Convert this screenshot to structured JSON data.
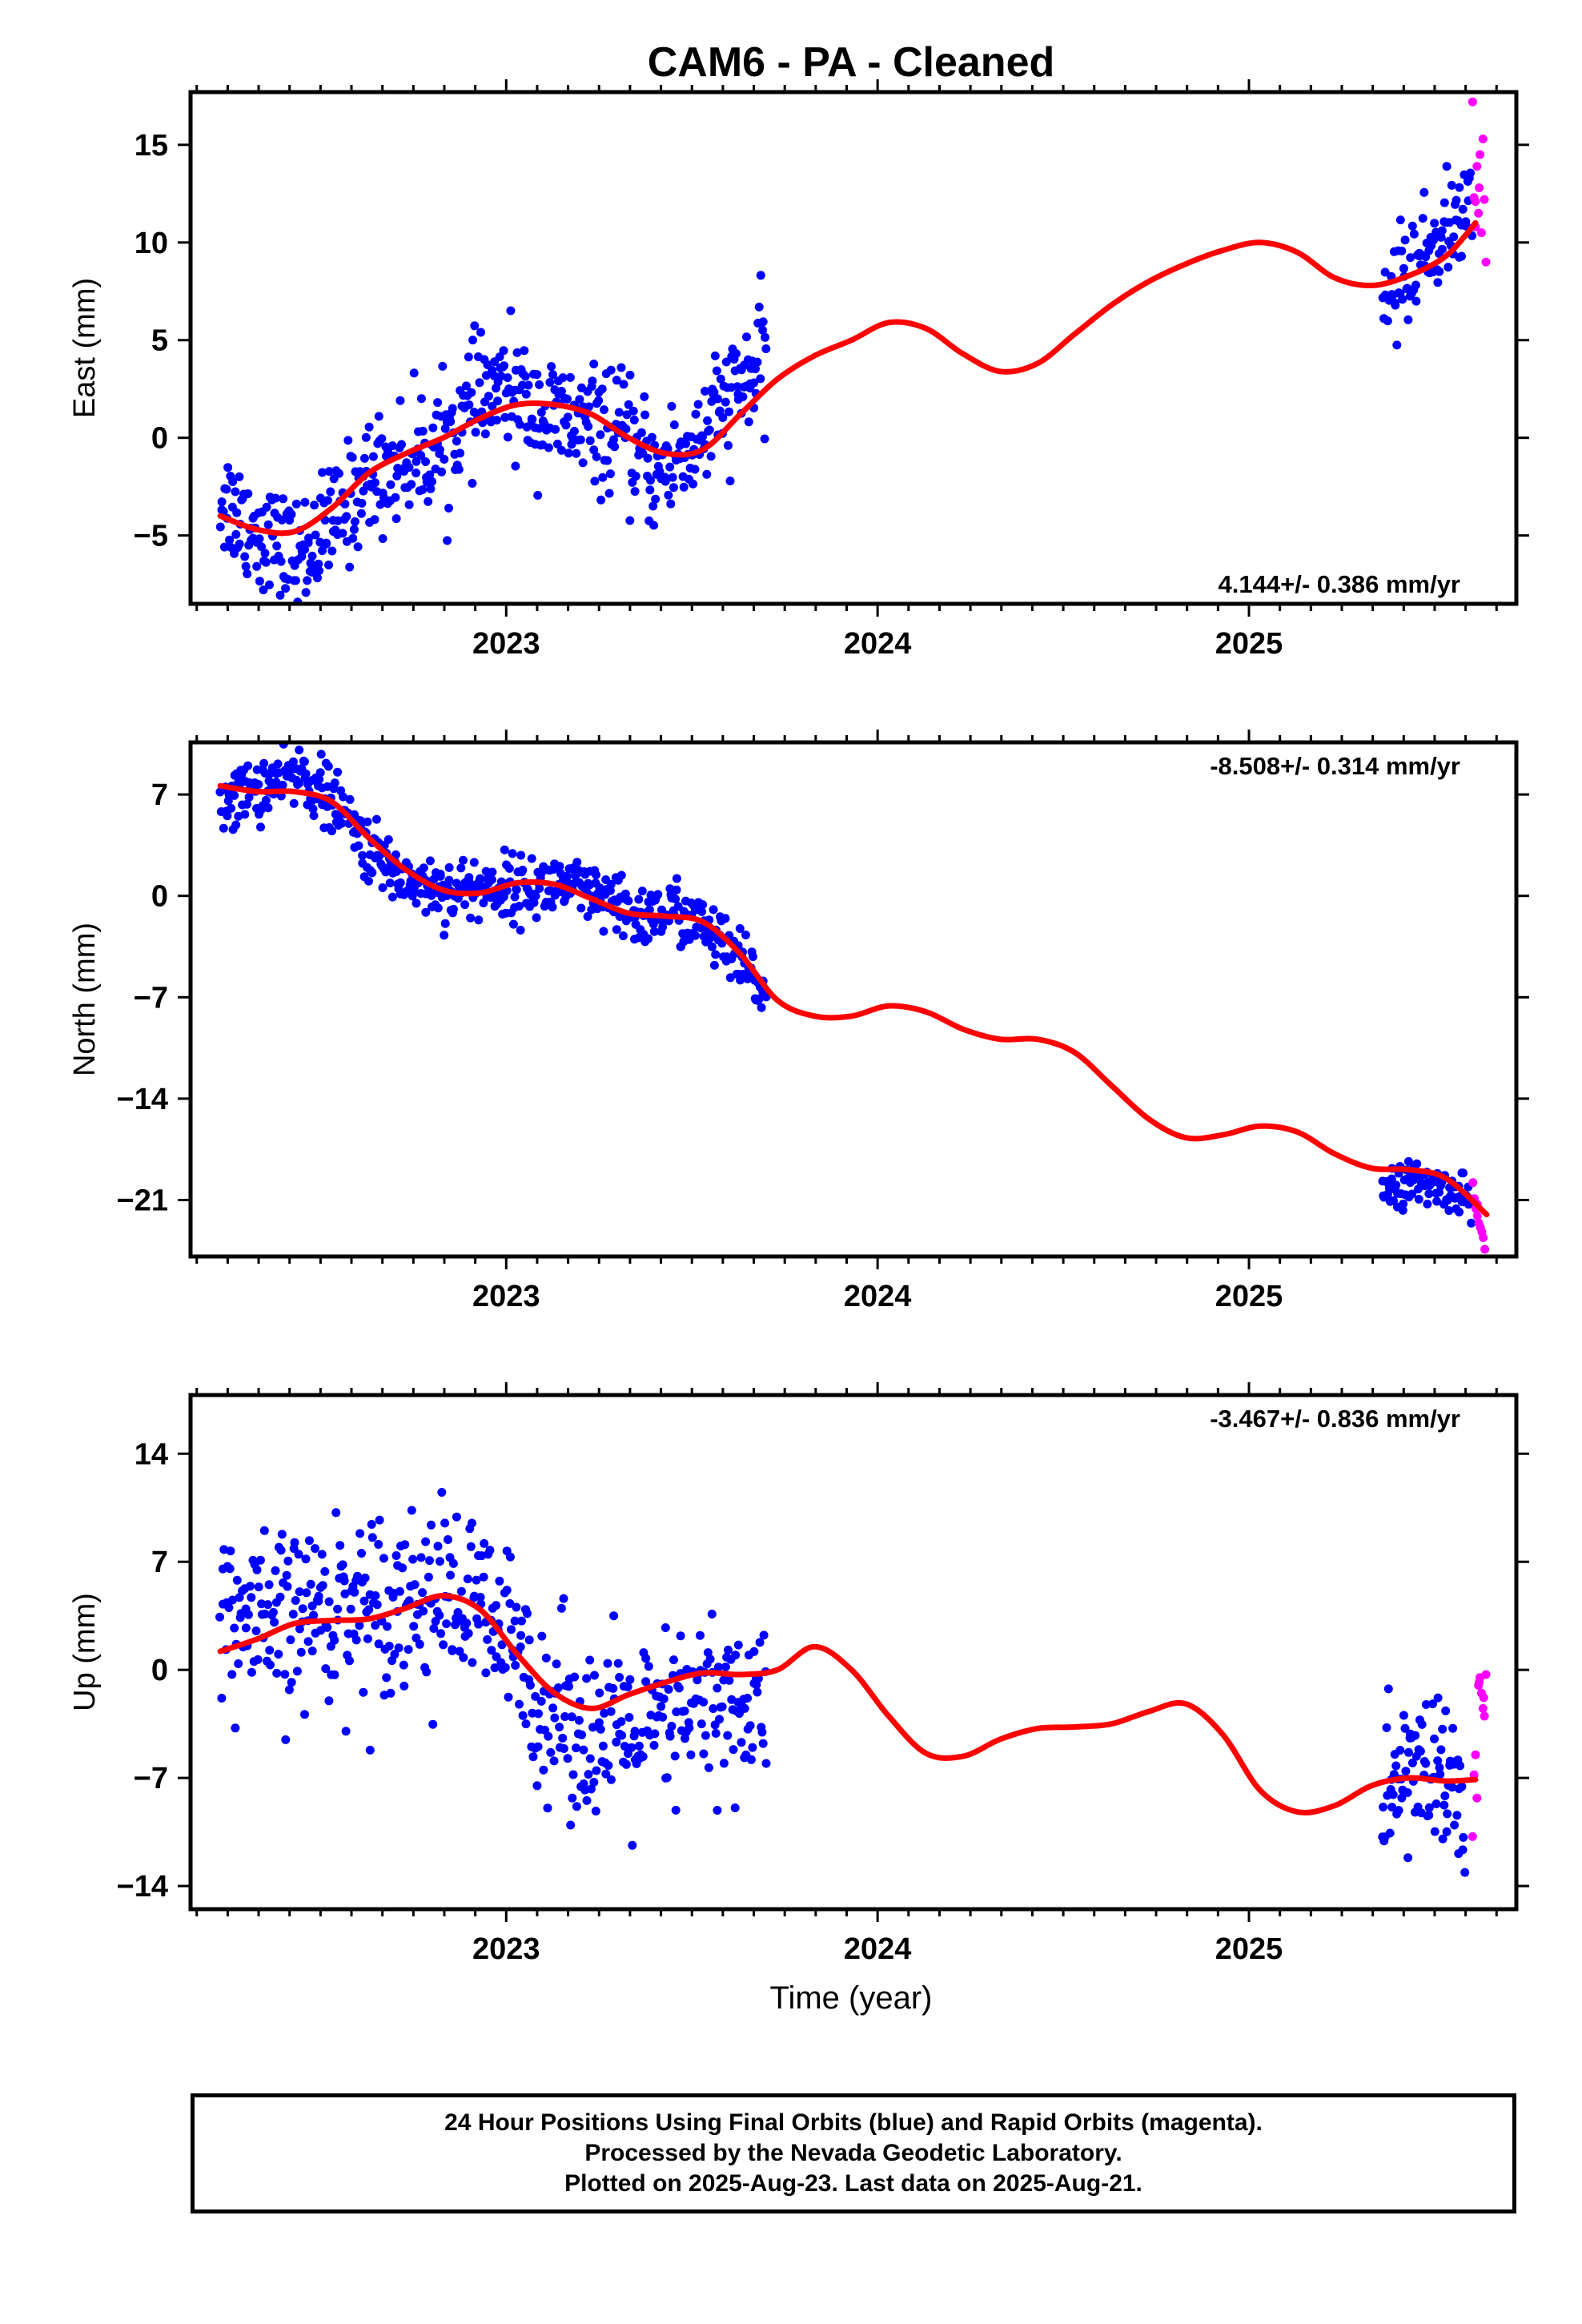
{
  "title": "CAM6  - PA - Cleaned",
  "xlabel": "Time (year)",
  "footer": {
    "line1": "24 Hour Positions Using Final Orbits (blue) and Rapid Orbits (magenta).",
    "line2": "Processed by the Nevada Geodetic Laboratory.",
    "line3": "Plotted on 2025-Aug-23. Last data on 2025-Aug-21."
  },
  "colors": {
    "final": "#0000ff",
    "rapid": "#ff00ff",
    "model": "#ff0000",
    "axis": "#000000"
  },
  "chart_data": [
    {
      "type": "scatter",
      "id": "east",
      "ylabel": "East (mm)",
      "rate_label": "4.144+/- 0.386 mm/yr",
      "rate_position": "bottom-right",
      "xlim": [
        2022.15,
        2025.72
      ],
      "ylim": [
        -8.5,
        17.7
      ],
      "yticks": [
        15,
        10,
        5,
        0,
        -5
      ],
      "ytick_labels": [
        "15",
        "10",
        "5",
        "0",
        "−5"
      ],
      "xticks": [
        2023,
        2024,
        2025
      ],
      "xtick_labels": [
        "2023",
        "2024",
        "2025"
      ],
      "model": [
        [
          2022.23,
          -4.0
        ],
        [
          2022.33,
          -4.7
        ],
        [
          2022.43,
          -4.8
        ],
        [
          2022.53,
          -3.6
        ],
        [
          2022.63,
          -1.8
        ],
        [
          2022.73,
          -0.8
        ],
        [
          2022.83,
          0.0
        ],
        [
          2022.93,
          1.0
        ],
        [
          2023.03,
          1.7
        ],
        [
          2023.13,
          1.7
        ],
        [
          2023.23,
          1.2
        ],
        [
          2023.33,
          0.0
        ],
        [
          2023.43,
          -0.8
        ],
        [
          2023.53,
          -0.6
        ],
        [
          2023.63,
          1.2
        ],
        [
          2023.73,
          3.0
        ],
        [
          2023.83,
          4.2
        ],
        [
          2023.93,
          5.0
        ],
        [
          2024.03,
          5.9
        ],
        [
          2024.13,
          5.6
        ],
        [
          2024.23,
          4.3
        ],
        [
          2024.33,
          3.4
        ],
        [
          2024.43,
          3.8
        ],
        [
          2024.53,
          5.3
        ],
        [
          2024.63,
          6.8
        ],
        [
          2024.73,
          8.0
        ],
        [
          2024.83,
          8.9
        ],
        [
          2024.93,
          9.6
        ],
        [
          2025.03,
          10.0
        ],
        [
          2025.13,
          9.5
        ],
        [
          2025.23,
          8.2
        ],
        [
          2025.33,
          7.8
        ],
        [
          2025.43,
          8.3
        ],
        [
          2025.53,
          9.3
        ],
        [
          2025.61,
          11.0
        ]
      ],
      "final_segments": [
        {
          "x": [
            2022.23,
            2023.7
          ],
          "trend": [
            [
              2022.23,
              -3.0
            ],
            [
              2022.33,
              -4.8
            ],
            [
              2022.43,
              -6.3
            ],
            [
              2022.53,
              -4.5
            ],
            [
              2022.63,
              -2.0
            ],
            [
              2022.73,
              -1.2
            ],
            [
              2022.83,
              -0.3
            ],
            [
              2022.93,
              2.0
            ],
            [
              2023.0,
              2.5
            ],
            [
              2023.1,
              1.2
            ],
            [
              2023.2,
              0.6
            ],
            [
              2023.3,
              0.3
            ],
            [
              2023.4,
              -1.8
            ],
            [
              2023.5,
              -0.6
            ],
            [
              2023.6,
              2.0
            ],
            [
              2023.7,
              4.0
            ]
          ],
          "spread": 1.5,
          "n": 560
        },
        {
          "x": [
            2025.36,
            2025.6
          ],
          "trend": [
            [
              2025.36,
              7.0
            ],
            [
              2025.45,
              9.0
            ],
            [
              2025.55,
              11.0
            ],
            [
              2025.6,
              11.5
            ]
          ],
          "spread": 1.3,
          "n": 90
        }
      ],
      "rapid": {
        "x": [
          2025.6,
          2025.64
        ],
        "points": [
          [
            2025.602,
            17.2
          ],
          [
            2025.606,
            12.3
          ],
          [
            2025.61,
            12.1
          ],
          [
            2025.614,
            13.9
          ],
          [
            2025.618,
            11.5
          ],
          [
            2025.622,
            14.5
          ],
          [
            2025.626,
            10.5
          ],
          [
            2025.63,
            15.3
          ],
          [
            2025.634,
            12.2
          ],
          [
            2025.638,
            9.0
          ],
          [
            2025.61,
            10.8
          ],
          [
            2025.62,
            12.8
          ]
        ]
      }
    },
    {
      "type": "scatter",
      "id": "north",
      "ylabel": "North (mm)",
      "rate_label": "-8.508+/- 0.314 mm/yr",
      "rate_position": "top-right",
      "xlim": [
        2022.15,
        2025.72
      ],
      "ylim": [
        -24.9,
        10.6
      ],
      "yticks": [
        7,
        0,
        -7,
        -14,
        -21
      ],
      "ytick_labels": [
        "7",
        "0",
        "−7",
        "−14",
        "−21"
      ],
      "xticks": [
        2023,
        2024,
        2025
      ],
      "xtick_labels": [
        "2023",
        "2024",
        "2025"
      ],
      "model": [
        [
          2022.23,
          7.6
        ],
        [
          2022.33,
          7.2
        ],
        [
          2022.43,
          7.2
        ],
        [
          2022.53,
          6.5
        ],
        [
          2022.63,
          4.0
        ],
        [
          2022.73,
          1.8
        ],
        [
          2022.83,
          0.4
        ],
        [
          2022.93,
          0.2
        ],
        [
          2023.03,
          0.9
        ],
        [
          2023.13,
          0.8
        ],
        [
          2023.23,
          -0.2
        ],
        [
          2023.33,
          -1.2
        ],
        [
          2023.43,
          -1.4
        ],
        [
          2023.53,
          -1.8
        ],
        [
          2023.63,
          -4.0
        ],
        [
          2023.73,
          -7.2
        ],
        [
          2023.83,
          -8.3
        ],
        [
          2023.93,
          -8.3
        ],
        [
          2024.03,
          -7.6
        ],
        [
          2024.13,
          -8.0
        ],
        [
          2024.23,
          -9.2
        ],
        [
          2024.33,
          -9.9
        ],
        [
          2024.43,
          -9.9
        ],
        [
          2024.53,
          -10.8
        ],
        [
          2024.63,
          -13.1
        ],
        [
          2024.73,
          -15.4
        ],
        [
          2024.83,
          -16.7
        ],
        [
          2024.93,
          -16.5
        ],
        [
          2025.03,
          -15.9
        ],
        [
          2025.13,
          -16.3
        ],
        [
          2025.23,
          -17.8
        ],
        [
          2025.33,
          -18.8
        ],
        [
          2025.43,
          -18.9
        ],
        [
          2025.53,
          -19.5
        ],
        [
          2025.64,
          -22.0
        ]
      ],
      "final_segments": [
        {
          "x": [
            2022.23,
            2023.7
          ],
          "trend": [
            [
              2022.23,
              6.6
            ],
            [
              2022.35,
              7.5
            ],
            [
              2022.45,
              8.5
            ],
            [
              2022.55,
              6.0
            ],
            [
              2022.65,
              2.5
            ],
            [
              2022.75,
              1.0
            ],
            [
              2022.85,
              0.3
            ],
            [
              2022.95,
              0.6
            ],
            [
              2023.05,
              0.5
            ],
            [
              2023.15,
              0.8
            ],
            [
              2023.25,
              -0.3
            ],
            [
              2023.35,
              -1.5
            ],
            [
              2023.45,
              -1.0
            ],
            [
              2023.55,
              -2.5
            ],
            [
              2023.62,
              -4.5
            ],
            [
              2023.7,
              -6.7
            ]
          ],
          "spread": 1.1,
          "n": 560
        },
        {
          "x": [
            2025.36,
            2025.6
          ],
          "trend": [
            [
              2025.36,
              -20.0
            ],
            [
              2025.45,
              -19.8
            ],
            [
              2025.55,
              -20.3
            ],
            [
              2025.6,
              -21.0
            ]
          ],
          "spread": 0.7,
          "n": 95
        }
      ],
      "rapid": {
        "x": [
          2025.6,
          2025.64
        ],
        "points": [
          [
            2025.603,
            -19.8
          ],
          [
            2025.607,
            -20.9
          ],
          [
            2025.611,
            -21.6
          ],
          [
            2025.615,
            -22.1
          ],
          [
            2025.619,
            -22.6
          ],
          [
            2025.623,
            -22.9
          ],
          [
            2025.627,
            -23.2
          ],
          [
            2025.631,
            -23.6
          ],
          [
            2025.635,
            -24.4
          ],
          [
            2025.615,
            -21.3
          ]
        ]
      }
    },
    {
      "type": "scatter",
      "id": "up",
      "ylabel": "Up (mm)",
      "rate_label": "-3.467+/- 0.836 mm/yr",
      "rate_position": "top-right",
      "xlim": [
        2022.15,
        2025.72
      ],
      "ylim": [
        -15.5,
        17.8
      ],
      "yticks": [
        14,
        7,
        0,
        -7,
        -14
      ],
      "ytick_labels": [
        "14",
        "7",
        "0",
        "−7",
        "−14"
      ],
      "xticks": [
        2023,
        2024,
        2025
      ],
      "xtick_labels": [
        "2023",
        "2024",
        "2025"
      ],
      "model": [
        [
          2022.23,
          1.2
        ],
        [
          2022.33,
          2.0
        ],
        [
          2022.43,
          3.0
        ],
        [
          2022.53,
          3.2
        ],
        [
          2022.63,
          3.3
        ],
        [
          2022.73,
          4.0
        ],
        [
          2022.83,
          4.8
        ],
        [
          2022.93,
          3.9
        ],
        [
          2023.03,
          1.0
        ],
        [
          2023.13,
          -1.5
        ],
        [
          2023.23,
          -2.5
        ],
        [
          2023.33,
          -1.6
        ],
        [
          2023.43,
          -0.8
        ],
        [
          2023.53,
          -0.2
        ],
        [
          2023.63,
          -0.3
        ],
        [
          2023.73,
          0.0
        ],
        [
          2023.83,
          1.5
        ],
        [
          2023.93,
          0.0
        ],
        [
          2024.03,
          -3.0
        ],
        [
          2024.13,
          -5.4
        ],
        [
          2024.23,
          -5.6
        ],
        [
          2024.33,
          -4.5
        ],
        [
          2024.43,
          -3.8
        ],
        [
          2024.53,
          -3.7
        ],
        [
          2024.63,
          -3.5
        ],
        [
          2024.73,
          -2.7
        ],
        [
          2024.83,
          -2.2
        ],
        [
          2024.93,
          -4.2
        ],
        [
          2025.03,
          -7.8
        ],
        [
          2025.13,
          -9.2
        ],
        [
          2025.23,
          -8.8
        ],
        [
          2025.33,
          -7.5
        ],
        [
          2025.43,
          -7.0
        ],
        [
          2025.53,
          -7.2
        ],
        [
          2025.61,
          -7.1
        ]
      ],
      "final_segments": [
        {
          "x": [
            2022.23,
            2023.7
          ],
          "trend": [
            [
              2022.23,
              3.5
            ],
            [
              2022.35,
              2.5
            ],
            [
              2022.5,
              4.0
            ],
            [
              2022.65,
              4.5
            ],
            [
              2022.8,
              5.0
            ],
            [
              2022.92,
              4.0
            ],
            [
              2023.0,
              2.0
            ],
            [
              2023.1,
              -2.0
            ],
            [
              2023.25,
              -4.5
            ],
            [
              2023.4,
              -4.0
            ],
            [
              2023.55,
              -2.0
            ],
            [
              2023.7,
              -2.5
            ]
          ],
          "spread": 2.9,
          "n": 520
        },
        {
          "x": [
            2025.36,
            2025.58
          ],
          "trend": [
            [
              2025.36,
              -8.0
            ],
            [
              2025.47,
              -6.0
            ],
            [
              2025.58,
              -8.5
            ]
          ],
          "spread": 2.6,
          "n": 85
        }
      ],
      "rapid": {
        "x": [
          2025.6,
          2025.64
        ],
        "points": [
          [
            2025.602,
            -10.8
          ],
          [
            2025.606,
            -6.8
          ],
          [
            2025.61,
            -5.5
          ],
          [
            2025.614,
            -8.3
          ],
          [
            2025.618,
            -1.0
          ],
          [
            2025.622,
            -0.5
          ],
          [
            2025.626,
            -1.5
          ],
          [
            2025.63,
            -2.5
          ],
          [
            2025.634,
            -3.0
          ],
          [
            2025.638,
            -0.3
          ],
          [
            2025.62,
            -0.8
          ],
          [
            2025.632,
            -1.8
          ]
        ]
      }
    }
  ]
}
